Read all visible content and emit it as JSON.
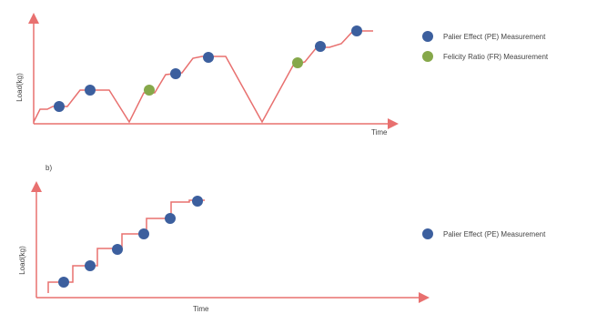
{
  "colors": {
    "axis": "#e8706f",
    "line": "#e8706f",
    "pe_marker": "#3c5f9e",
    "fr_marker": "#86a84a",
    "text": "#444444"
  },
  "panel_a": {
    "ylabel": "Load(kg)",
    "xlabel": "Time",
    "legend": [
      {
        "label": "Palier Effect (PE) Measurement",
        "marker": "pe"
      },
      {
        "label": "Felicity Ratio (FR) Measurement",
        "marker": "fr"
      }
    ]
  },
  "panel_b": {
    "panel_label": "b)",
    "ylabel": "Load(kg)",
    "xlabel": "Time",
    "legend": [
      {
        "label": "Palier Effect (PE) Measurement",
        "marker": "pe"
      }
    ]
  }
}
